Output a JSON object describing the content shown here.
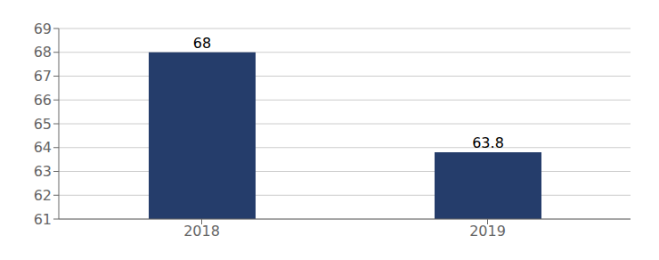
{
  "chart_data": {
    "type": "bar",
    "categories": [
      "2018",
      "2019"
    ],
    "values": [
      68,
      63.8
    ],
    "color": "#253d6b",
    "ylim": [
      61,
      69
    ],
    "yticks": [
      61,
      62,
      63,
      64,
      65,
      66,
      67,
      68,
      69
    ],
    "grid": true,
    "data_labels": true
  }
}
